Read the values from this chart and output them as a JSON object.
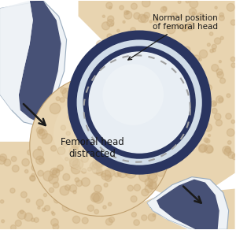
{
  "bg_color": "#ffffff",
  "bone_color": "#dfc9a0",
  "bone_color2": "#e8d4b0",
  "bone_tex_color": "#c8a878",
  "bone_tex_color2": "#b89858",
  "cartilage_color": "#d0dce8",
  "labrum_dark": "#2a3560",
  "labrum_mid": "#4a5888",
  "socket_white": "#e8eef4",
  "socket_highlight": "#f0f4f8",
  "femoral_color": "#dfc9a0",
  "femoral_tex": "#c8a878",
  "shaft_color": "#dce6ee",
  "shaft_light": "#eef2f6",
  "shaft_dark_line": "#2a3560",
  "dot_color": "#a0a0a0",
  "arrow_color": "#1a1a1a",
  "text_color": "#1a1a1a",
  "title": "Normal position\nof femoral head",
  "label": "Femoral head\ndistracted"
}
